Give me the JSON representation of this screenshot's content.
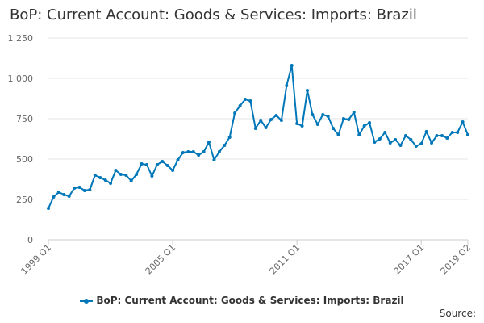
{
  "chart_data": {
    "type": "line",
    "title": "BoP: Current Account: Goods & Services: Imports: Brazil",
    "xlabel": "",
    "ylabel": "",
    "ylim": [
      0,
      1250
    ],
    "y_ticks": [
      0,
      250,
      500,
      750,
      1000,
      1250
    ],
    "y_tick_labels": [
      "0",
      "250",
      "500",
      "750",
      "1 000",
      "1 250"
    ],
    "x_tick_labels": [
      "1999 Q1",
      "2005 Q1",
      "2011 Q1",
      "2017 Q1",
      "2019 Q2"
    ],
    "grid": true,
    "legend": "bottom",
    "color": "#0077b8",
    "x": [
      "1999 Q1",
      "1999 Q2",
      "1999 Q3",
      "1999 Q4",
      "2000 Q1",
      "2000 Q2",
      "2000 Q3",
      "2000 Q4",
      "2001 Q1",
      "2001 Q2",
      "2001 Q3",
      "2001 Q4",
      "2002 Q1",
      "2002 Q2",
      "2002 Q3",
      "2002 Q4",
      "2003 Q1",
      "2003 Q2",
      "2003 Q3",
      "2003 Q4",
      "2004 Q1",
      "2004 Q2",
      "2004 Q3",
      "2004 Q4",
      "2005 Q1",
      "2005 Q2",
      "2005 Q3",
      "2005 Q4",
      "2006 Q1",
      "2006 Q2",
      "2006 Q3",
      "2006 Q4",
      "2007 Q1",
      "2007 Q2",
      "2007 Q3",
      "2007 Q4",
      "2008 Q1",
      "2008 Q2",
      "2008 Q3",
      "2008 Q4",
      "2009 Q1",
      "2009 Q2",
      "2009 Q3",
      "2009 Q4",
      "2010 Q1",
      "2010 Q2",
      "2010 Q3",
      "2010 Q4",
      "2011 Q1",
      "2011 Q2",
      "2011 Q3",
      "2011 Q4",
      "2012 Q1",
      "2012 Q2",
      "2012 Q3",
      "2012 Q4",
      "2013 Q1",
      "2013 Q2",
      "2013 Q3",
      "2013 Q4",
      "2014 Q1",
      "2014 Q2",
      "2014 Q3",
      "2014 Q4",
      "2015 Q1",
      "2015 Q2",
      "2015 Q3",
      "2015 Q4",
      "2016 Q1",
      "2016 Q2",
      "2016 Q3",
      "2016 Q4",
      "2017 Q1",
      "2017 Q2",
      "2017 Q3",
      "2017 Q4",
      "2018 Q1",
      "2018 Q2",
      "2018 Q3",
      "2018 Q4",
      "2019 Q1",
      "2019 Q2"
    ],
    "series": [
      {
        "name": "BoP: Current Account: Goods & Services: Imports: Brazil",
        "values": [
          195,
          265,
          295,
          280,
          270,
          320,
          325,
          305,
          310,
          400,
          385,
          370,
          350,
          430,
          405,
          400,
          365,
          405,
          470,
          465,
          395,
          465,
          485,
          460,
          430,
          495,
          540,
          545,
          545,
          525,
          545,
          605,
          495,
          545,
          585,
          635,
          785,
          830,
          870,
          860,
          690,
          740,
          695,
          745,
          770,
          740,
          955,
          1080,
          720,
          705,
          925,
          775,
          715,
          775,
          765,
          690,
          650,
          750,
          745,
          790,
          650,
          705,
          725,
          605,
          625,
          665,
          600,
          620,
          585,
          645,
          620,
          580,
          595,
          670,
          600,
          645,
          645,
          630,
          665,
          665,
          730,
          650
        ]
      }
    ]
  },
  "legend": {
    "label": "BoP: Current Account: Goods & Services: Imports: Brazil"
  },
  "footer": {
    "source_label": "Source:"
  }
}
